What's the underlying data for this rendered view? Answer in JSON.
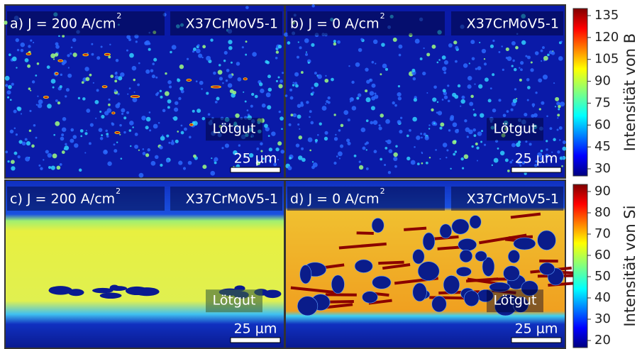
{
  "panels": [
    {
      "label": "a) J = 200 A/cm",
      "sup": "2",
      "material": "X37CrMoV5-1",
      "region": "Lötgut",
      "scale": "25 µm"
    },
    {
      "label": "b) J = 0 A/cm",
      "sup": "2",
      "material": "X37CrMoV5-1",
      "region": "Lötgut",
      "scale": "25 µm"
    },
    {
      "label": "c) J = 200 A/cm",
      "sup": "2",
      "material": "X37CrMoV5-1",
      "region": "Lötgut",
      "scale": "25 µm"
    },
    {
      "label": "d) J = 0 A/cm",
      "sup": "2",
      "material": "X37CrMoV5-1",
      "region": "Lötgut",
      "scale": "25 µm"
    }
  ],
  "colorbars": [
    {
      "label": "Intensität von B",
      "ticks": [
        135,
        120,
        105,
        90,
        75,
        60,
        45,
        30
      ]
    },
    {
      "label": "Intensität von Si",
      "ticks": [
        90,
        80,
        70,
        60,
        50,
        40,
        30,
        20
      ]
    }
  ]
}
